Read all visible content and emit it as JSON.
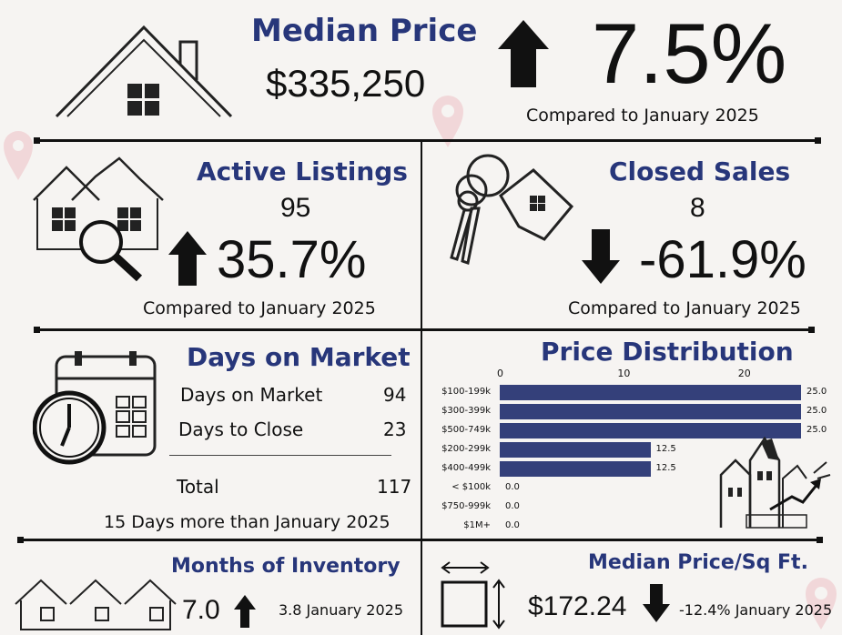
{
  "median_price": {
    "title": "Median Price",
    "value": "$335,250",
    "change": "7.5%",
    "compare": "Compared to January 2025"
  },
  "active_listings": {
    "title": "Active Listings",
    "value": "95",
    "change": "35.7%",
    "compare": "Compared to January 2025"
  },
  "closed_sales": {
    "title": "Closed Sales",
    "value": "8",
    "change": "-61.9%",
    "compare": "Compared to January 2025"
  },
  "days_on_market": {
    "title": "Days on Market",
    "rows": [
      {
        "label": "Days on Market",
        "value": "94"
      },
      {
        "label": "Days to Close",
        "value": "23"
      }
    ],
    "total_label": "Total",
    "total_value": "117",
    "note": "15 Days more than January 2025"
  },
  "price_distribution": {
    "title": "Price Distribution"
  },
  "months_inventory": {
    "title": "Months of Inventory",
    "value": "7.0",
    "compare": "3.8 January 2025"
  },
  "median_sqft": {
    "title": "Median Price/Sq Ft.",
    "value": "$172.24",
    "compare": "-12.4% January 2025"
  },
  "colors": {
    "navy": "#27367a",
    "bar": "#34407a",
    "ink": "#111111",
    "bg": "#f6f4f2"
  },
  "chart_data": {
    "type": "bar",
    "orientation": "horizontal",
    "title": "Price Distribution",
    "categories": [
      "$100-199k",
      "$300-399k",
      "$500-749k",
      "$200-299k",
      "$400-499k",
      "< $100k",
      "$750-999k",
      "$1M+"
    ],
    "values": [
      25.0,
      25.0,
      25.0,
      12.5,
      12.5,
      0.0,
      0.0,
      0.0
    ],
    "value_labels": [
      "25.0",
      "25.0",
      "25.0",
      "12.5",
      "12.5",
      "0.0",
      "0.0",
      "0.0"
    ],
    "xticks": [
      "0",
      "10",
      "20"
    ],
    "xlim": [
      0,
      25
    ],
    "xlabel": "",
    "ylabel": ""
  }
}
